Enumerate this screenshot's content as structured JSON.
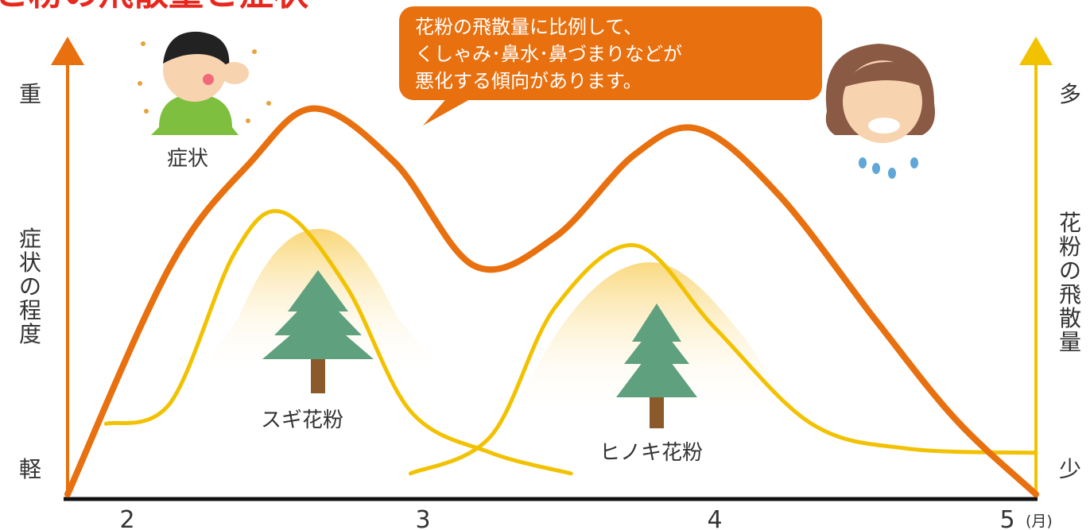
{
  "colors": {
    "symptom_line": "#E8700F",
    "pollen_line": "#F2C200",
    "pollen_fill": "#FBE6A6",
    "callout_bg": "#E8700F",
    "title_red": "#E8281E",
    "axis_black": "#111111",
    "tree_green": "#5FA07E",
    "trunk_brown": "#8A5A2B",
    "boy_shirt": "#7FBF3F",
    "girl_hair": "#8A5A44"
  },
  "title_fragment": "と粉の飛散量と症状",
  "callout": {
    "line1": "花粉の飛散量に比例して、",
    "line2": "くしゃみ･鼻水･鼻づまりなどが",
    "line3": "悪化する傾向があります。"
  },
  "left_axis": {
    "top": "重",
    "bottom": "軽",
    "label": [
      "症",
      "状",
      "の",
      "程",
      "度"
    ]
  },
  "right_axis": {
    "top": "多",
    "bottom": "少",
    "label": [
      "花",
      "粉",
      "の",
      "飛",
      "散",
      "量"
    ]
  },
  "symptom_label": "症状",
  "chart_data": {
    "type": "line",
    "x_ticks": [
      "2",
      "3",
      "4",
      "5"
    ],
    "x_unit": "(月)",
    "xlim": [
      1.98,
      5.0
    ],
    "ylim": [
      0,
      100
    ],
    "series": [
      {
        "name": "症状",
        "x": [
          1.98,
          2.3,
          2.55,
          2.75,
          3.0,
          3.25,
          3.5,
          3.75,
          3.95,
          4.2,
          4.5,
          4.75,
          5.0
        ],
        "y": [
          0,
          55,
          80,
          93,
          80,
          55,
          62,
          82,
          88,
          72,
          42,
          18,
          0
        ]
      },
      {
        "name": "スギ花粉",
        "x": [
          2.1,
          2.3,
          2.5,
          2.65,
          2.85,
          3.05,
          3.3,
          3.55
        ],
        "y": [
          17,
          22,
          58,
          68,
          50,
          20,
          10,
          5
        ]
      },
      {
        "name": "ヒノキ花粉",
        "x": [
          3.05,
          3.3,
          3.5,
          3.75,
          4.0,
          4.3,
          4.6,
          5.0
        ],
        "y": [
          5,
          14,
          45,
          60,
          40,
          17,
          11,
          10
        ]
      }
    ]
  }
}
